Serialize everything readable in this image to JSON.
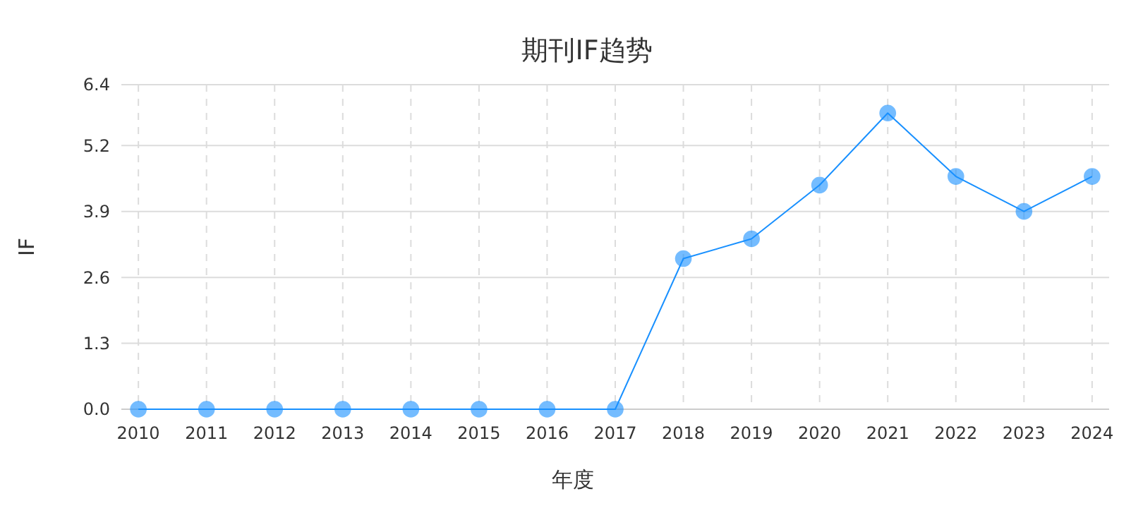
{
  "chart_data": {
    "type": "line",
    "title": "期刊IF趋势",
    "xlabel": "年度",
    "ylabel": "IF",
    "categories": [
      "2010",
      "2011",
      "2012",
      "2013",
      "2014",
      "2015",
      "2016",
      "2017",
      "2018",
      "2019",
      "2020",
      "2021",
      "2022",
      "2023",
      "2024"
    ],
    "series": [
      {
        "color": "#1890ff",
        "values": [
          0,
          0,
          0,
          0,
          0,
          0,
          0,
          0,
          2.97,
          3.36,
          4.42,
          5.84,
          4.59,
          3.9,
          4.59
        ]
      }
    ],
    "ylim": [
      0,
      6.4
    ],
    "yticks": [
      {
        "value": 0,
        "label": "0.0"
      },
      {
        "value": 1.3,
        "label": "1.3"
      },
      {
        "value": 2.6,
        "label": "2.6"
      },
      {
        "value": 3.9,
        "label": "3.9"
      },
      {
        "value": 5.2,
        "label": "5.2"
      },
      {
        "value": 6.4,
        "label": "6.4"
      }
    ],
    "grid": true,
    "marker": "circle"
  }
}
